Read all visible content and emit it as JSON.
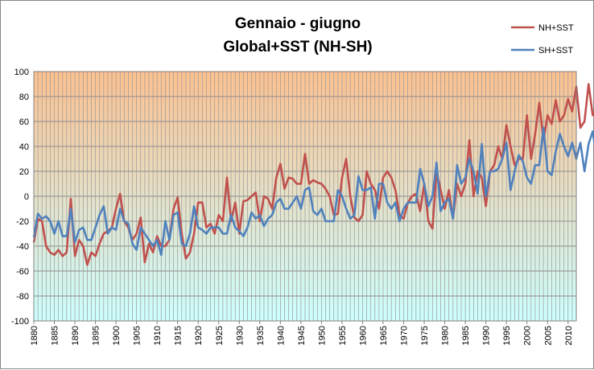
{
  "chart_data": {
    "type": "line",
    "title": "Gennaio - giugno",
    "subtitle": "Global+SST (NH-SH)",
    "xlabel": "",
    "ylabel": "",
    "xlim": [
      1880,
      2012
    ],
    "ylim": [
      -100,
      100
    ],
    "y_ticks": [
      -100,
      -80,
      -60,
      -40,
      -20,
      0,
      20,
      40,
      60,
      80,
      100
    ],
    "x_ticks": [
      1880,
      1885,
      1890,
      1895,
      1900,
      1905,
      1910,
      1915,
      1920,
      1925,
      1930,
      1935,
      1940,
      1945,
      1950,
      1955,
      1960,
      1965,
      1970,
      1975,
      1980,
      1985,
      1990,
      1995,
      2000,
      2005,
      2010
    ],
    "grid": true,
    "legend_position": "top-right",
    "background_gradient": [
      "#fcc08f",
      "#ccffff"
    ],
    "x_start": 1880,
    "series": [
      {
        "name": "NH+SST",
        "color": "#c0504d",
        "values": [
          -37,
          -18,
          -20,
          -40,
          -45,
          -47,
          -43,
          -48,
          -45,
          -2,
          -48,
          -35,
          -40,
          -55,
          -45,
          -48,
          -38,
          -30,
          -28,
          -25,
          -10,
          2,
          -20,
          -25,
          -35,
          -30,
          -17,
          -53,
          -38,
          -45,
          -32,
          -40,
          -40,
          -35,
          -10,
          -1,
          -30,
          -50,
          -45,
          -30,
          -5,
          -5,
          -25,
          -22,
          -30,
          -15,
          -20,
          15,
          -20,
          -5,
          -30,
          -4,
          -3,
          0,
          3,
          -20,
          0,
          -2,
          -10,
          15,
          26,
          6,
          15,
          14,
          10,
          10,
          34,
          10,
          13,
          11,
          10,
          6,
          0,
          -15,
          -14,
          15,
          30,
          0,
          -17,
          -20,
          -15,
          20,
          10,
          5,
          -10,
          15,
          20,
          15,
          5,
          -15,
          -18,
          -5,
          0,
          2,
          -12,
          10,
          -20,
          -26,
          20,
          5,
          -10,
          5,
          -18,
          10,
          0,
          10,
          45,
          0,
          20,
          15,
          -8,
          20,
          25,
          40,
          30,
          57,
          40,
          25,
          30,
          30,
          65,
          30,
          50,
          75,
          45,
          65,
          58,
          77,
          60,
          65,
          78,
          68,
          88,
          55,
          60,
          90,
          65,
          70
        ]
      },
      {
        "name": "SH+SST",
        "color": "#4f81bd",
        "values": [
          -33,
          -14,
          -18,
          -16,
          -20,
          -30,
          -20,
          -32,
          -32,
          -10,
          -37,
          -27,
          -25,
          -35,
          -35,
          -25,
          -15,
          -8,
          -30,
          -25,
          -27,
          -10,
          -20,
          -22,
          -38,
          -43,
          -25,
          -30,
          -35,
          -40,
          -35,
          -47,
          -20,
          -35,
          -15,
          -13,
          -38,
          -40,
          -30,
          -8,
          -25,
          -27,
          -30,
          -25,
          -25,
          -25,
          -30,
          -30,
          -15,
          -25,
          -28,
          -32,
          -25,
          -13,
          -18,
          -15,
          -24,
          -18,
          -15,
          -5,
          -2,
          -10,
          -10,
          -5,
          0,
          -10,
          5,
          7,
          -12,
          -15,
          -10,
          -20,
          -20,
          -20,
          5,
          0,
          -10,
          -18,
          -15,
          16,
          5,
          5,
          7,
          -18,
          10,
          10,
          -5,
          -10,
          -5,
          -20,
          -10,
          -5,
          -5,
          -5,
          22,
          10,
          -8,
          0,
          27,
          -12,
          -5,
          -2,
          -18,
          25,
          10,
          15,
          30,
          20,
          2,
          42,
          0,
          20,
          20,
          22,
          30,
          43,
          5,
          20,
          33,
          28,
          15,
          10,
          25,
          25,
          55,
          20,
          17,
          36,
          50,
          40,
          32,
          43,
          30,
          43,
          20,
          42,
          52,
          30,
          28
        ]
      }
    ]
  }
}
